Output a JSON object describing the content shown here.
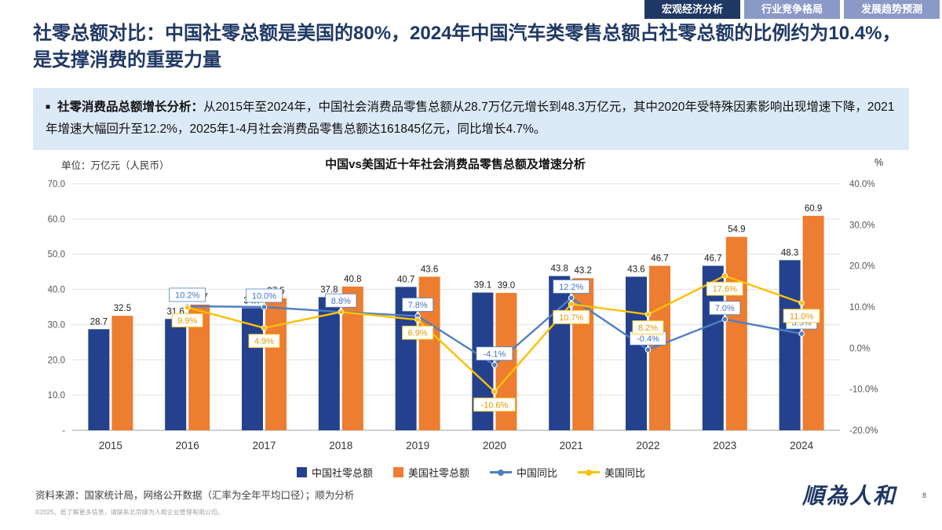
{
  "tabs": [
    {
      "label": "宏观经济分析",
      "active": true
    },
    {
      "label": "行业竞争格局",
      "active": false
    },
    {
      "label": "发展趋势预测",
      "active": false
    }
  ],
  "title": "社零总额对比：中国社零总额是美国的80%，2024年中国汽车类零售总额占社零总额的比例约为10.4%，是支撑消费的重要力量",
  "summary": {
    "bullet": "■",
    "lead": "社零消费品总额增长分析：",
    "text": "从2015年至2024年，中国社会消费品零售总额从28.7万亿元增长到48.3万亿元，其中2020年受特殊因素影响出现增速下降，2021年增速大幅回升至12.2%，2025年1-4月社会消费品零售总额达161845亿元，同比增长4.7%。"
  },
  "chart_data": {
    "type": "bar+line",
    "title": "中国vs美国近十年社会消费品零售总额及增速分析",
    "unit_label": "单位：万亿元（人民币）",
    "right_axis_label": "%",
    "categories": [
      "2015",
      "2016",
      "2017",
      "2018",
      "2019",
      "2020",
      "2021",
      "2022",
      "2023",
      "2024"
    ],
    "bar_series": [
      {
        "name": "中国社零总额",
        "color": "#24418E",
        "values": [
          28.7,
          31.6,
          34.7,
          37.8,
          40.7,
          39.1,
          43.8,
          43.6,
          46.7,
          48.3
        ]
      },
      {
        "name": "美国社零总额",
        "color": "#ED7D31",
        "values": [
          32.5,
          35.7,
          37.5,
          40.8,
          43.6,
          39.0,
          43.2,
          46.7,
          54.9,
          60.9
        ]
      }
    ],
    "line_series": [
      {
        "name": "中国同比",
        "color": "#4E7FC0",
        "label_color": "#4472C4",
        "values": [
          null,
          10.2,
          10.0,
          8.8,
          7.8,
          -4.1,
          12.2,
          -0.4,
          7.0,
          3.5
        ],
        "labels": [
          null,
          "10.2%",
          "10.0%",
          "8.8%",
          "7.8%",
          "-4.1%",
          "12.2%",
          "-0.4%",
          "7.0%",
          "3.5%"
        ]
      },
      {
        "name": "美国同比",
        "color": "#FFC000",
        "label_color": "#E09A00",
        "values": [
          null,
          9.9,
          4.9,
          8.8,
          6.9,
          -10.6,
          10.7,
          8.2,
          17.6,
          11.0
        ],
        "labels": [
          null,
          "9.9%",
          "4.9%",
          null,
          "6.9%",
          "-10.6%",
          "10.7%",
          "8.2%",
          "17.6%",
          "11.0%"
        ]
      }
    ],
    "left_axis": {
      "min": 0,
      "max": 70,
      "step": 10,
      "labels": [
        "-",
        "10.0",
        "20.0",
        "30.0",
        "40.0",
        "50.0",
        "60.0",
        "70.0"
      ]
    },
    "right_axis": {
      "min": -20,
      "max": 40,
      "step": 10,
      "labels": [
        "-20.0%",
        "-10.0%",
        "0.0%",
        "10.0%",
        "20.0%",
        "30.0%",
        "40.0%"
      ]
    },
    "grid": true,
    "legend_position": "bottom"
  },
  "footer": {
    "source": "资料来源：国家统计局，网络公开数据（汇率为全年平均口径）；顺为分析",
    "copyright": "©2025，若了解更多信息，请联系北京顺为人和企业管理有限公司。",
    "logo": "順為人和",
    "page": "8"
  }
}
